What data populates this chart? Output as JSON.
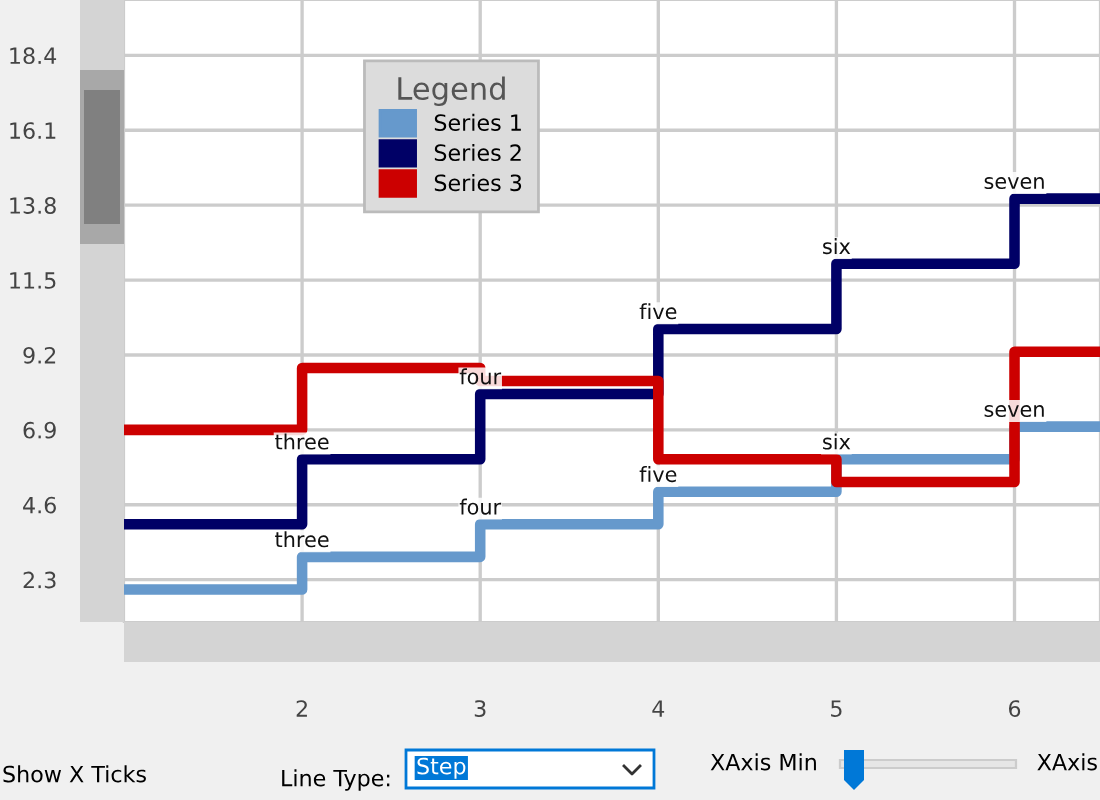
{
  "chart_data": {
    "type": "step",
    "x": [
      1,
      2,
      3,
      4,
      5,
      6,
      6.48
    ],
    "series": [
      {
        "name": "Series 1",
        "color": "#6699cc",
        "values": [
          2.0,
          3.0,
          4.0,
          5.0,
          6.0,
          7.0,
          7.0
        ]
      },
      {
        "name": "Series 2",
        "color": "#000066",
        "values": [
          4.0,
          6.0,
          8.0,
          10.0,
          12.0,
          14.0,
          14.0
        ]
      },
      {
        "name": "Series 3",
        "color": "#cc0000",
        "values": [
          6.9,
          8.8,
          8.4,
          6.0,
          5.3,
          9.3,
          9.3
        ]
      }
    ],
    "xlim": [
      1.0,
      6.48
    ],
    "xticks": [
      2,
      3,
      4,
      5,
      6
    ],
    "ylim": [
      1.0,
      20.1
    ],
    "yticks": [
      2.3,
      4.6,
      6.9,
      9.2,
      11.5,
      13.8,
      16.1,
      18.4
    ],
    "grid": true,
    "legend": "top left",
    "legend_title": "Legend",
    "line_style": "solid",
    "marker": "none",
    "annotations": [
      {
        "text": "three",
        "x": 2,
        "y": 3.0
      },
      {
        "text": "four",
        "x": 3,
        "y": 4.0
      },
      {
        "text": "five",
        "x": 4,
        "y": 5.0
      },
      {
        "text": "six",
        "x": 5,
        "y": 6.0
      },
      {
        "text": "seven",
        "x": 6,
        "y": 7.0
      },
      {
        "text": "three",
        "x": 2,
        "y": 6.0
      },
      {
        "text": "four",
        "x": 3,
        "y": 8.0
      },
      {
        "text": "five",
        "x": 4,
        "y": 10.0
      },
      {
        "text": "six",
        "x": 5,
        "y": 12.0
      },
      {
        "text": "seven",
        "x": 6,
        "y": 14.0
      },
      "Show X Ticks",
      "Line Type:",
      "Step",
      "XAxis Min",
      "XAxis"
    ]
  }
}
